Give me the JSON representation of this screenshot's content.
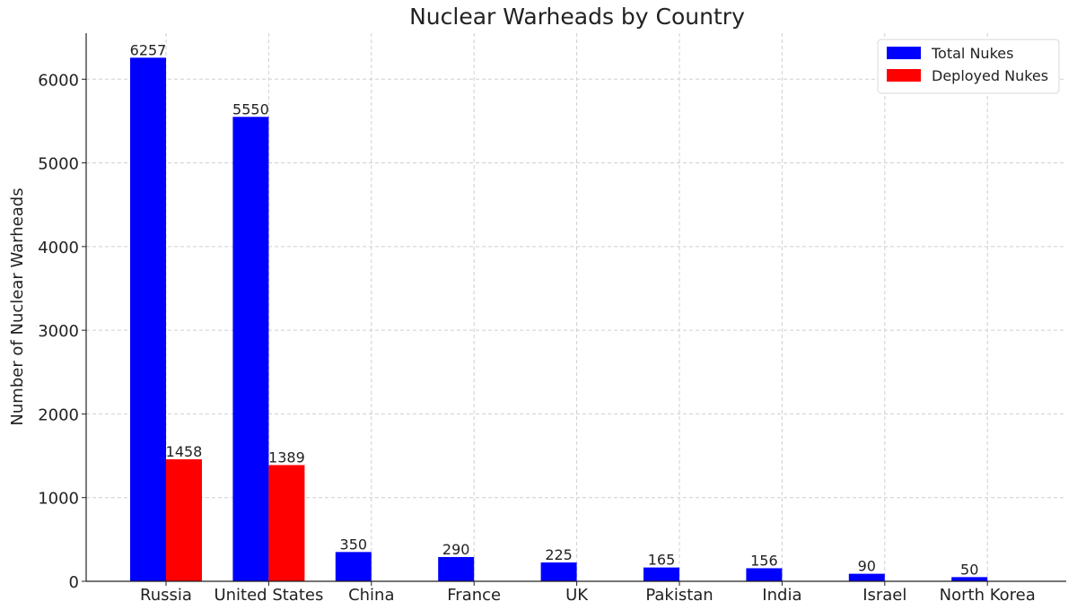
{
  "chart_data": {
    "type": "bar",
    "title": "Nuclear Warheads by Country",
    "xlabel": "",
    "ylabel": "Number of Nuclear Warheads",
    "categories": [
      "Russia",
      "United States",
      "China",
      "France",
      "UK",
      "Pakistan",
      "India",
      "Israel",
      "North Korea"
    ],
    "series": [
      {
        "name": "Total Nukes",
        "color": "#0000ff",
        "values": [
          6257,
          5550,
          350,
          290,
          225,
          165,
          156,
          90,
          50
        ],
        "labels": [
          "6257",
          "5550",
          "350",
          "290",
          "225",
          "165",
          "156",
          "90",
          "50"
        ]
      },
      {
        "name": "Deployed Nukes",
        "color": "#ff0000",
        "values": [
          1458,
          1389,
          null,
          null,
          null,
          null,
          null,
          null,
          null
        ],
        "labels": [
          "1458",
          "1389",
          null,
          null,
          null,
          null,
          null,
          null,
          null
        ]
      }
    ],
    "ylim": [
      0,
      6550
    ],
    "yticks": [
      0,
      1000,
      2000,
      3000,
      4000,
      5000,
      6000
    ],
    "ytick_labels": [
      "0",
      "1000",
      "2000",
      "3000",
      "4000",
      "5000",
      "6000"
    ],
    "grid": true,
    "legend_position": "top-right"
  }
}
